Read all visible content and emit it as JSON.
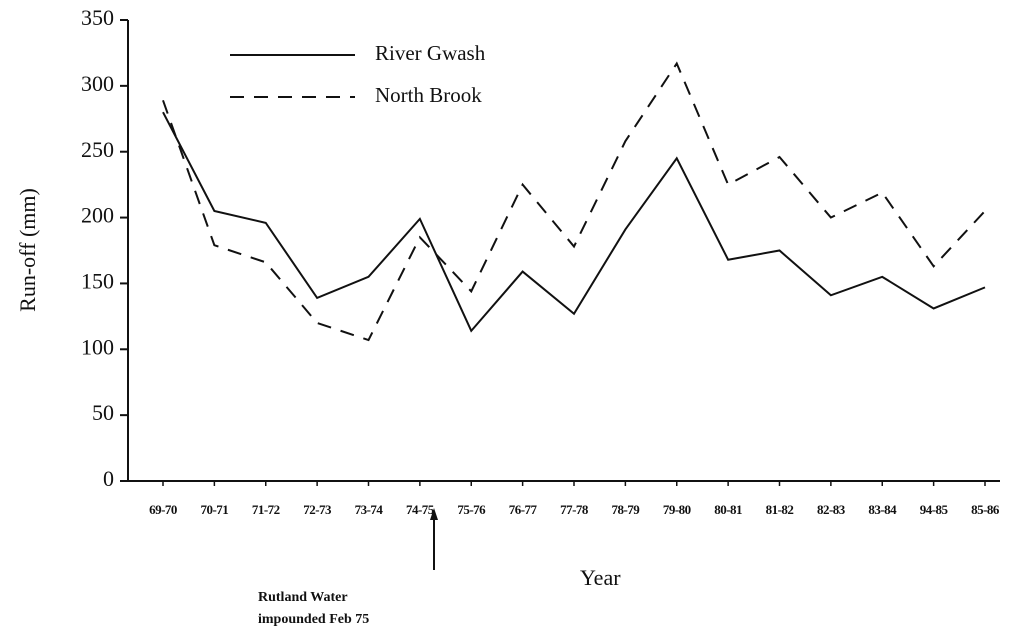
{
  "chart_data": {
    "type": "line",
    "x_label": "Year",
    "y_label": "Run-off (mm)",
    "annotation": [
      "Rutland Water",
      "impounded Feb 75"
    ],
    "categories": [
      "69-70",
      "70-71",
      "71-72",
      "72-73",
      "73-74",
      "74-75",
      "75-76",
      "76-77",
      "77-78",
      "78-79",
      "79-80",
      "80-81",
      "81-82",
      "82-83",
      "83-84",
      "94-85",
      "85-86"
    ],
    "series": [
      {
        "name": "River Gwash",
        "color": "#111111",
        "dash": "solid",
        "values": [
          280,
          205,
          196,
          139,
          155,
          199,
          114,
          159,
          127,
          191,
          245,
          168,
          175,
          141,
          155,
          131,
          147
        ]
      },
      {
        "name": "North Brook",
        "color": "#111111",
        "dash": "dashed",
        "values": [
          289,
          179,
          166,
          120,
          107,
          185,
          144,
          225,
          178,
          258,
          317,
          225,
          246,
          200,
          219,
          163,
          205
        ]
      }
    ],
    "ylim": [
      0,
      350
    ],
    "yticks": [
      0,
      50,
      100,
      150,
      200,
      250,
      300,
      350
    ],
    "grid": false,
    "legend": "upper left"
  }
}
